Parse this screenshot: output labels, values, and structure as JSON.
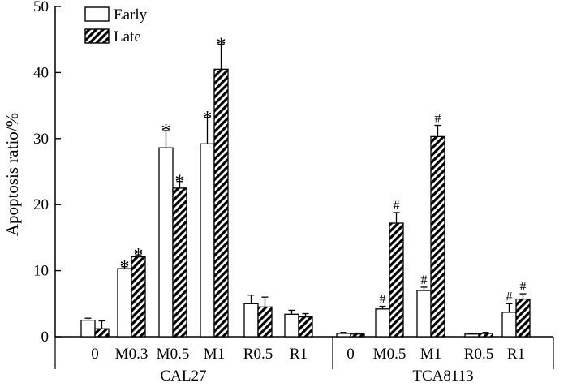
{
  "chart_data": {
    "type": "bar",
    "ylabel": "Apoptosis ratio/%",
    "xlabel": "",
    "ylim": [
      0,
      50
    ],
    "yticks": [
      0,
      10,
      20,
      30,
      40,
      50
    ],
    "grid": false,
    "legend": {
      "position": "top-left",
      "entries": [
        "Early",
        "Late"
      ]
    },
    "series": [
      {
        "name": "Early",
        "pattern": "open"
      },
      {
        "name": "Late",
        "pattern": "hatched"
      }
    ],
    "groups": [
      {
        "name": "CAL27",
        "categories": [
          {
            "label": "0",
            "early": 2.5,
            "early_err": 0.3,
            "late": 1.2,
            "late_err": 1.2,
            "early_mark": "",
            "late_mark": ""
          },
          {
            "label": "M0.3",
            "early": 10.3,
            "early_err": 0.3,
            "late": 12.1,
            "late_err": 0.3,
            "early_mark": "*",
            "late_mark": "*"
          },
          {
            "label": "M0.5",
            "early": 28.6,
            "early_err": 2.6,
            "late": 22.5,
            "late_err": 1.0,
            "early_mark": "*",
            "late_mark": "*"
          },
          {
            "label": "M1",
            "early": 29.2,
            "early_err": 4.0,
            "late": 40.5,
            "late_err": 3.8,
            "early_mark": "*",
            "late_mark": "*"
          },
          {
            "label": "R0.5",
            "early": 5.0,
            "early_err": 1.3,
            "late": 4.5,
            "late_err": 1.5,
            "early_mark": "",
            "late_mark": ""
          },
          {
            "label": "R1",
            "early": 3.4,
            "early_err": 0.6,
            "late": 3.0,
            "late_err": 0.5,
            "early_mark": "",
            "late_mark": ""
          }
        ]
      },
      {
        "name": "TCA8113",
        "categories": [
          {
            "label": "0",
            "early": 0.5,
            "early_err": 0.15,
            "late": 0.4,
            "late_err": 0.15,
            "early_mark": "",
            "late_mark": ""
          },
          {
            "label": "M0.5",
            "early": 4.2,
            "early_err": 0.4,
            "late": 17.2,
            "late_err": 1.6,
            "early_mark": "#",
            "late_mark": "#"
          },
          {
            "label": "M1",
            "early": 7.0,
            "early_err": 0.5,
            "late": 30.3,
            "late_err": 1.7,
            "early_mark": "#",
            "late_mark": "#"
          },
          {
            "label": "R0.5",
            "early": 0.4,
            "early_err": 0.1,
            "late": 0.5,
            "late_err": 0.15,
            "early_mark": "",
            "late_mark": ""
          },
          {
            "label": "R1",
            "early": 3.7,
            "early_err": 1.3,
            "late": 5.7,
            "late_err": 0.8,
            "early_mark": "#",
            "late_mark": "#"
          }
        ]
      }
    ]
  }
}
